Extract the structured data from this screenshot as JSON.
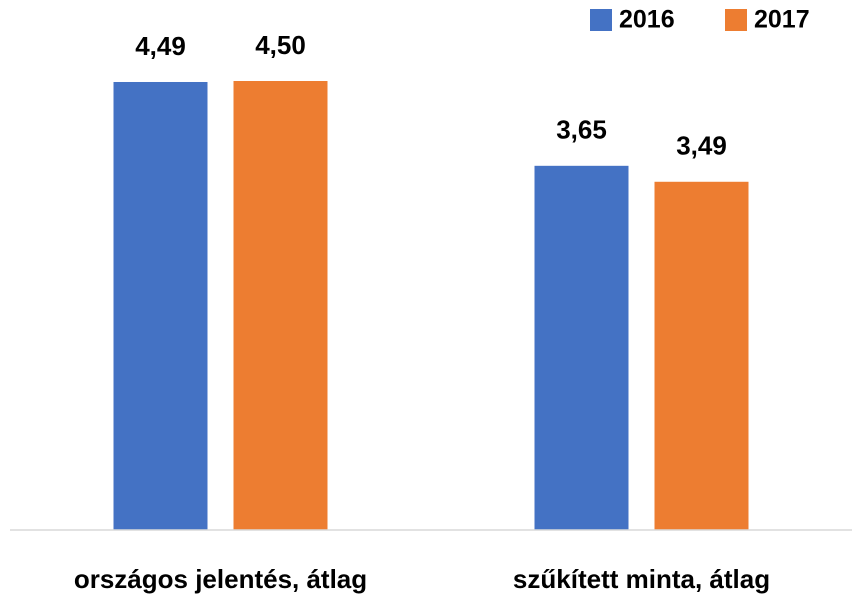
{
  "chart_data": {
    "type": "bar",
    "categories": [
      "országos jelentés, átlag",
      "szűkített minta, átlag"
    ],
    "series": [
      {
        "name": "2016",
        "color": "#4472c4",
        "values": [
          4.49,
          3.65
        ],
        "value_labels": [
          "4,49",
          "3,65"
        ]
      },
      {
        "name": "2017",
        "color": "#ed7d31",
        "values": [
          4.5,
          3.49
        ],
        "value_labels": [
          "4,50",
          "3,49"
        ]
      }
    ],
    "ylim": [
      0,
      4.5
    ],
    "legend": "top-right"
  }
}
